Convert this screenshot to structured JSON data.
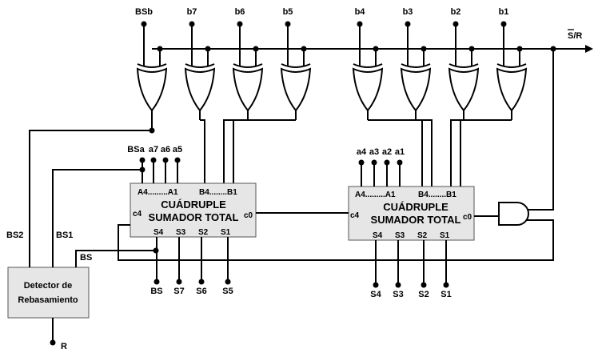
{
  "top_inputs": [
    "BSb",
    "b7",
    "b6",
    "b5",
    "b4",
    "b3",
    "b2",
    "b1"
  ],
  "sr_label": "S/R",
  "adder_left": {
    "title_line1": "CUÁDRUPLE",
    "title_line2": "SUMADOR TOTAL",
    "a_range": "A4.........A1",
    "b_range": "B4........B1",
    "carry_in": "c0",
    "carry_out": "c4",
    "a_inputs": [
      "BSa",
      "a7",
      "a6",
      "a5"
    ],
    "outputs_pins": [
      "S4",
      "S3",
      "S2",
      "S1"
    ],
    "outputs": [
      "BS",
      "S7",
      "S6",
      "S5"
    ]
  },
  "adder_right": {
    "title_line1": "CUÁDRUPLE",
    "title_line2": "SUMADOR TOTAL",
    "a_range": "A4.........A1",
    "b_range": "B4........B1",
    "carry_in": "c0",
    "carry_out": "c4",
    "a_inputs": [
      "a4",
      "a3",
      "a2",
      "a1"
    ],
    "outputs_pins": [
      "S4",
      "S3",
      "S2",
      "S1"
    ],
    "outputs": [
      "S4",
      "S3",
      "S2",
      "S1"
    ]
  },
  "detector": {
    "line1": "Detector de",
    "line2": "Rebasamiento",
    "in_bs2": "BS2",
    "in_bs1": "BS1",
    "in_bs": "BS",
    "out_r": "R"
  }
}
